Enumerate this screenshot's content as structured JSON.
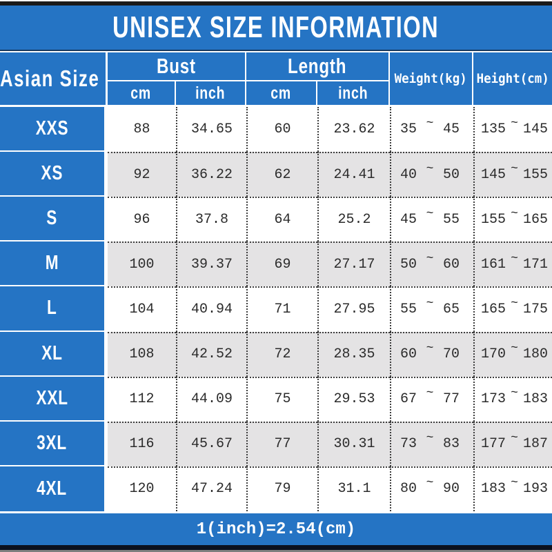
{
  "page": {
    "title": "UNISEX SIZE INFORMATION",
    "footer_note": "1(inch)=2.54(cm)"
  },
  "colors": {
    "accent_blue": "#2574C4",
    "alt_row_gray": "#E4E3E4",
    "top_bar_black": "#1A1A1A",
    "bottom_bar_navy": "#0B111F",
    "bottom_strip_gray": "#7F7F7F",
    "text_dark": "#2B2B2B"
  },
  "table": {
    "corner_header": "Asian Size",
    "group_headers": [
      {
        "label": "Bust"
      },
      {
        "label": "Length"
      }
    ],
    "sub_headers": [
      "cm",
      "inch",
      "cm",
      "inch"
    ],
    "span_headers": [
      "Weight(kg)",
      "Height(cm)"
    ],
    "range_separator": "~",
    "rows": [
      {
        "size": "XXS",
        "bust_cm": "88",
        "bust_inch": "34.65",
        "length_cm": "60",
        "length_inch": "23.62",
        "weight_min": "35",
        "weight_max": "45",
        "height_min": "135",
        "height_max": "145"
      },
      {
        "size": "XS",
        "bust_cm": "92",
        "bust_inch": "36.22",
        "length_cm": "62",
        "length_inch": "24.41",
        "weight_min": "40",
        "weight_max": "50",
        "height_min": "145",
        "height_max": "155"
      },
      {
        "size": "S",
        "bust_cm": "96",
        "bust_inch": "37.8",
        "length_cm": "64",
        "length_inch": "25.2",
        "weight_min": "45",
        "weight_max": "55",
        "height_min": "155",
        "height_max": "165"
      },
      {
        "size": "M",
        "bust_cm": "100",
        "bust_inch": "39.37",
        "length_cm": "69",
        "length_inch": "27.17",
        "weight_min": "50",
        "weight_max": "60",
        "height_min": "161",
        "height_max": "171"
      },
      {
        "size": "L",
        "bust_cm": "104",
        "bust_inch": "40.94",
        "length_cm": "71",
        "length_inch": "27.95",
        "weight_min": "55",
        "weight_max": "65",
        "height_min": "165",
        "height_max": "175"
      },
      {
        "size": "XL",
        "bust_cm": "108",
        "bust_inch": "42.52",
        "length_cm": "72",
        "length_inch": "28.35",
        "weight_min": "60",
        "weight_max": "70",
        "height_min": "170",
        "height_max": "180"
      },
      {
        "size": "XXL",
        "bust_cm": "112",
        "bust_inch": "44.09",
        "length_cm": "75",
        "length_inch": "29.53",
        "weight_min": "67",
        "weight_max": "77",
        "height_min": "173",
        "height_max": "183"
      },
      {
        "size": "3XL",
        "bust_cm": "116",
        "bust_inch": "45.67",
        "length_cm": "77",
        "length_inch": "30.31",
        "weight_min": "73",
        "weight_max": "83",
        "height_min": "177",
        "height_max": "187"
      },
      {
        "size": "4XL",
        "bust_cm": "120",
        "bust_inch": "47.24",
        "length_cm": "79",
        "length_inch": "31.1",
        "weight_min": "80",
        "weight_max": "90",
        "height_min": "183",
        "height_max": "193"
      }
    ]
  }
}
